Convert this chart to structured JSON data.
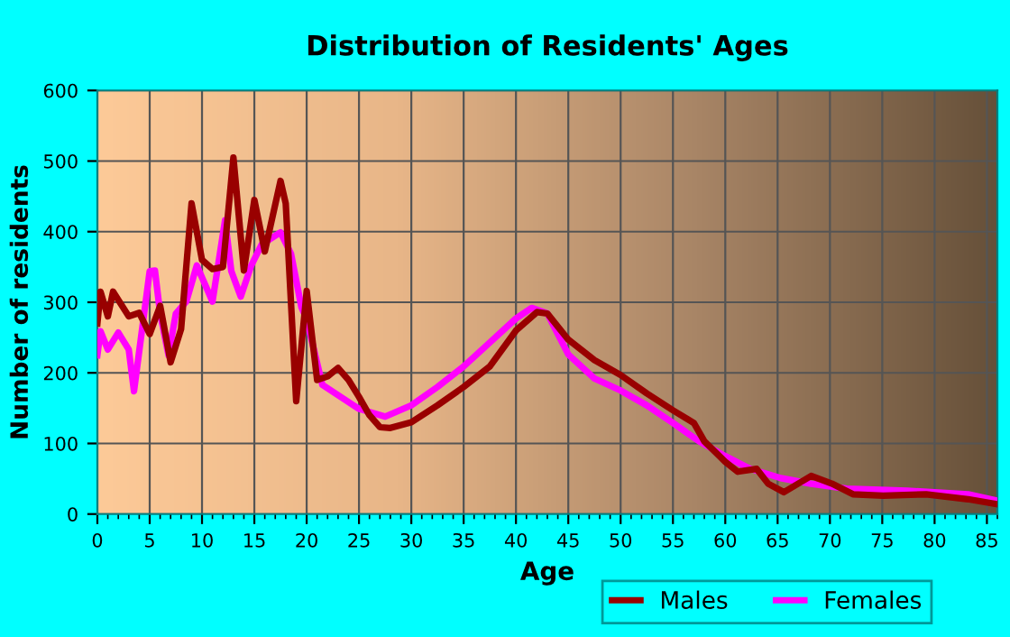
{
  "chart_data": {
    "type": "line",
    "title": "Distribution of Residents' Ages",
    "xlabel": "Age",
    "ylabel": "Number of residents",
    "xlim": [
      0,
      86
    ],
    "ylim": [
      0,
      600
    ],
    "xticks": [
      0,
      5,
      10,
      15,
      20,
      25,
      30,
      35,
      40,
      45,
      50,
      55,
      60,
      65,
      70,
      75,
      80,
      85
    ],
    "yticks": [
      0,
      100,
      200,
      300,
      400,
      500,
      600
    ],
    "grid": true,
    "legend": "bottom right",
    "marker": "none",
    "line_style": "solid",
    "series": [
      {
        "name": "Males",
        "color": "#990000",
        "x": [
          0,
          0.3,
          1,
          1.5,
          3,
          4,
          5,
          6,
          7,
          8,
          9,
          10,
          11,
          12,
          13,
          14,
          15,
          16,
          17.5,
          18,
          19,
          20,
          21,
          22,
          23,
          24,
          25,
          26,
          27,
          28,
          30,
          32.5,
          35,
          37.5,
          40,
          42,
          43,
          45,
          47.5,
          50,
          52.5,
          55,
          57,
          58,
          60,
          61.2,
          63,
          64.1,
          65.6,
          68.2,
          70.2,
          72.2,
          75.1,
          79.2,
          83.2,
          86
        ],
        "values": [
          270,
          315,
          280,
          315,
          280,
          285,
          255,
          295,
          215,
          262,
          440,
          360,
          347,
          350,
          505,
          345,
          445,
          372,
          472,
          440,
          160,
          316,
          190,
          195,
          207,
          190,
          166,
          140,
          123,
          122,
          130,
          154,
          180,
          209,
          260,
          286,
          284,
          247,
          218,
          197,
          171,
          147,
          129,
          103,
          74,
          60,
          64,
          43,
          31,
          54,
          43,
          28,
          26,
          28,
          21,
          14
        ]
      },
      {
        "name": "Females",
        "color": "#ff00ff",
        "x": [
          0,
          0.3,
          1,
          2,
          3,
          3.5,
          5,
          5.5,
          6,
          6.8,
          7.5,
          8.5,
          9.5,
          11,
          12.2,
          12.8,
          13.7,
          14.7,
          15.7,
          17.5,
          18.5,
          19.5,
          20,
          21.5,
          25,
          27.5,
          30,
          32.5,
          35,
          37.5,
          40,
          41.5,
          43,
          45,
          47.5,
          50,
          52.5,
          55,
          57.5,
          60,
          62.4,
          65.3,
          68.2,
          71.6,
          77.4,
          83.2,
          86
        ],
        "values": [
          225,
          259,
          233,
          257,
          233,
          174,
          344,
          345,
          284,
          225,
          284,
          301,
          352,
          301,
          416,
          344,
          308,
          352,
          382,
          399,
          369,
          293,
          276,
          183,
          149,
          138,
          154,
          180,
          209,
          243,
          277,
          292,
          284,
          226,
          192,
          175,
          154,
          129,
          103,
          82,
          64,
          51,
          43,
          36,
          33,
          28,
          19
        ]
      }
    ]
  }
}
